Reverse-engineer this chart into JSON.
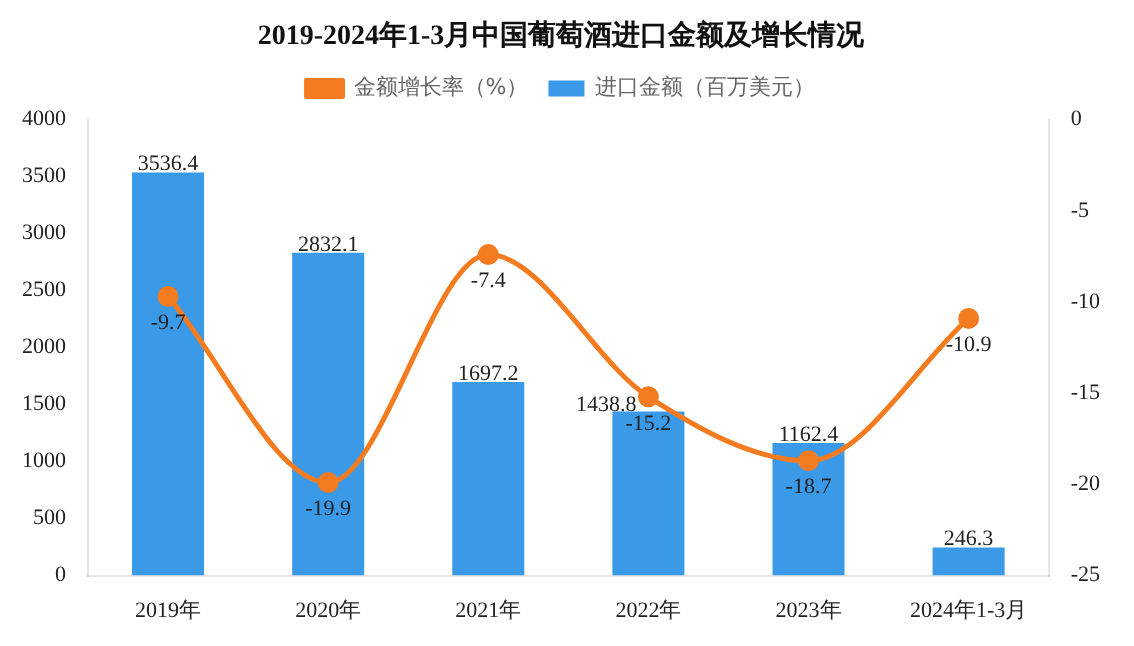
{
  "chart_data": {
    "type": "bar",
    "title": "2019-2024年1-3月中国葡萄酒进口金额及增长情况",
    "categories": [
      "2019年",
      "2020年",
      "2021年",
      "2022年",
      "2023年",
      "2024年1-3月"
    ],
    "series": [
      {
        "name": "进口金额（百万美元）",
        "color": "#3b9ae8",
        "values": [
          3536.4,
          2832.1,
          1697.2,
          1438.8,
          1162.4,
          246.3
        ]
      },
      {
        "name": "金额增长率（%）",
        "type": "line",
        "axis": "y2",
        "color": "#f47b20",
        "values": [
          -9.7,
          -19.9,
          -7.4,
          -15.2,
          -18.7,
          -10.9
        ]
      }
    ],
    "ylim": [
      0,
      4000
    ],
    "yticks": [
      0,
      500,
      1000,
      1500,
      2000,
      2500,
      3000,
      3500,
      4000
    ],
    "y2lim": [
      -25,
      0
    ],
    "y2ticks": [
      -25,
      -20,
      -15,
      -10,
      -5,
      0
    ],
    "data_labels": true,
    "legend": "top",
    "marker": "circle",
    "grid": false
  }
}
